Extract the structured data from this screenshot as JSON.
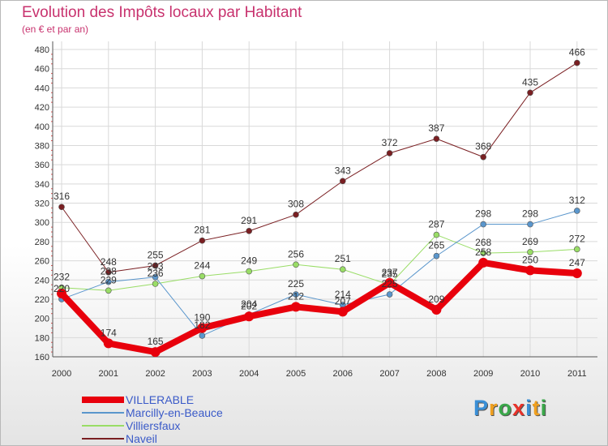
{
  "title": "Evolution des Impôts locaux par Habitant",
  "subtitle": "(en € et par an)",
  "logo": {
    "letters": [
      "P",
      "r",
      "o",
      "x",
      "i",
      "t",
      "i"
    ],
    "colors": [
      "#3a8fd6",
      "#f0a020",
      "#3aa84a",
      "#e8322a",
      "#3a8fd6",
      "#f0a020",
      "#3aa84a"
    ]
  },
  "chart_data": {
    "type": "line",
    "title": "Evolution des Impôts locaux par Habitant",
    "subtitle": "(en € et par an)",
    "xlabel": "",
    "ylabel": "",
    "ylim": [
      160,
      480
    ],
    "yticks": [
      160,
      180,
      200,
      220,
      240,
      260,
      280,
      300,
      320,
      340,
      360,
      380,
      400,
      420,
      440,
      460,
      480
    ],
    "categories": [
      "2000",
      "2001",
      "2002",
      "2003",
      "2004",
      "2005",
      "2006",
      "2007",
      "2008",
      "2009",
      "2010",
      "2011"
    ],
    "grid": true,
    "legend_position": "bottom-left",
    "series": [
      {
        "name": "VILLERABLE",
        "color": "#e8000c",
        "values": [
          226,
          174,
          165,
          190,
          202,
          212,
          207,
          237,
          209,
          258,
          250,
          247
        ],
        "labels": [
          "",
          "174",
          "165",
          "190",
          "202",
          "212",
          "207",
          "237",
          "209",
          "258",
          "250",
          "247"
        ]
      },
      {
        "name": "Marcilly-en-Beauce",
        "color": "#5a96cc",
        "values": [
          220,
          238,
          243,
          182,
          204,
          225,
          214,
          225,
          265,
          298,
          298,
          312
        ],
        "labels": [
          "220",
          "238",
          "243",
          "182",
          "204",
          "225",
          "214",
          "225",
          "265",
          "298",
          "298",
          "312"
        ]
      },
      {
        "name": "Villiersfaux",
        "color": "#99dd66",
        "values": [
          232,
          229,
          236,
          244,
          249,
          256,
          251,
          235,
          287,
          268,
          269,
          272
        ],
        "labels": [
          "232",
          "229",
          "236",
          "244",
          "249",
          "256",
          "251",
          "235",
          "287",
          "268",
          "269",
          "272"
        ]
      },
      {
        "name": "Naveil",
        "color": "#7a1f22",
        "values": [
          316,
          248,
          255,
          281,
          291,
          308,
          343,
          372,
          387,
          368,
          435,
          466
        ],
        "labels": [
          "316",
          "248",
          "255",
          "281",
          "291",
          "308",
          "343",
          "372",
          "387",
          "368",
          "435",
          "466"
        ]
      }
    ]
  }
}
